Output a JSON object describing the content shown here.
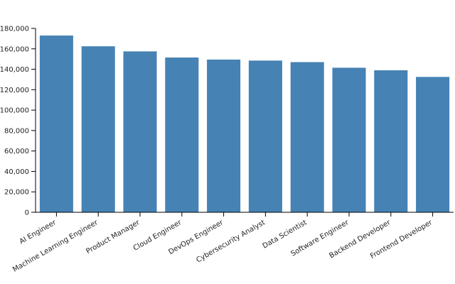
{
  "chart_data": {
    "type": "bar",
    "title": "",
    "xlabel": "",
    "ylabel": "",
    "categories": [
      "AI Engineer",
      "Machine Learning Engineer",
      "Product Manager",
      "Cloud Engineer",
      "DevOps Engineer",
      "Cybersecurity Analyst",
      "Data Scientist",
      "Software Engineer",
      "Backend Developer",
      "Frontend Developer"
    ],
    "values": [
      173000,
      162500,
      157500,
      151500,
      149500,
      148500,
      147000,
      141500,
      139000,
      132500
    ],
    "ylim": [
      0,
      180000
    ],
    "yticks": [
      "0",
      "20,000",
      "40,000",
      "60,000",
      "80,000",
      "100,000",
      "120,000",
      "140,000",
      "160,000",
      "180,000"
    ],
    "grid": false,
    "legend": "none",
    "bar_color": "#4682b4"
  }
}
